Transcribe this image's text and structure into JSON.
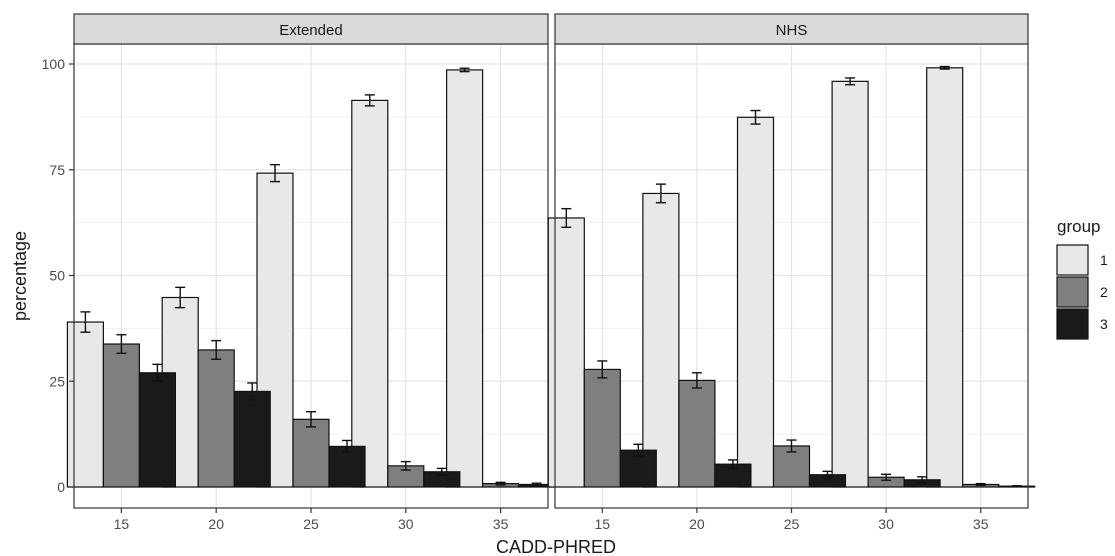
{
  "chart_data": {
    "type": "bar",
    "xlabel": "CADD-PHRED",
    "ylabel": "percentage",
    "categories": [
      "15",
      "20",
      "25",
      "30",
      "35"
    ],
    "ylim": [
      0,
      102
    ],
    "yticks": [
      0,
      25,
      50,
      75,
      100
    ],
    "grid": true,
    "legend": {
      "title": "group",
      "position": "right",
      "entries": [
        "1",
        "2",
        "3"
      ]
    },
    "colors": {
      "1": "#e8e8e8",
      "2": "#7f7f7f",
      "3": "#1a1a1a"
    },
    "facets": [
      {
        "title": "Extended",
        "series": [
          {
            "name": "1",
            "values": [
              39.0,
              44.8,
              74.2,
              91.4,
              98.6
            ],
            "errors": [
              2.4,
              2.4,
              2.0,
              1.3,
              0.4
            ]
          },
          {
            "name": "2",
            "values": [
              33.8,
              32.4,
              16.0,
              5.0,
              0.8
            ],
            "errors": [
              2.2,
              2.2,
              1.8,
              1.0,
              0.3
            ]
          },
          {
            "name": "3",
            "values": [
              27.0,
              22.6,
              9.6,
              3.6,
              0.6
            ],
            "errors": [
              2.0,
              2.0,
              1.4,
              0.8,
              0.3
            ]
          }
        ]
      },
      {
        "title": "NHS",
        "series": [
          {
            "name": "1",
            "values": [
              63.6,
              69.4,
              87.4,
              95.9,
              99.1
            ],
            "errors": [
              2.2,
              2.2,
              1.6,
              0.8,
              0.3
            ]
          },
          {
            "name": "2",
            "values": [
              27.8,
              25.2,
              9.7,
              2.3,
              0.6
            ],
            "errors": [
              2.0,
              1.8,
              1.4,
              0.7,
              0.2
            ]
          },
          {
            "name": "3",
            "values": [
              8.7,
              5.4,
              2.9,
              1.7,
              0.2
            ],
            "errors": [
              1.4,
              1.0,
              0.8,
              0.7,
              0.1
            ]
          }
        ]
      }
    ]
  }
}
